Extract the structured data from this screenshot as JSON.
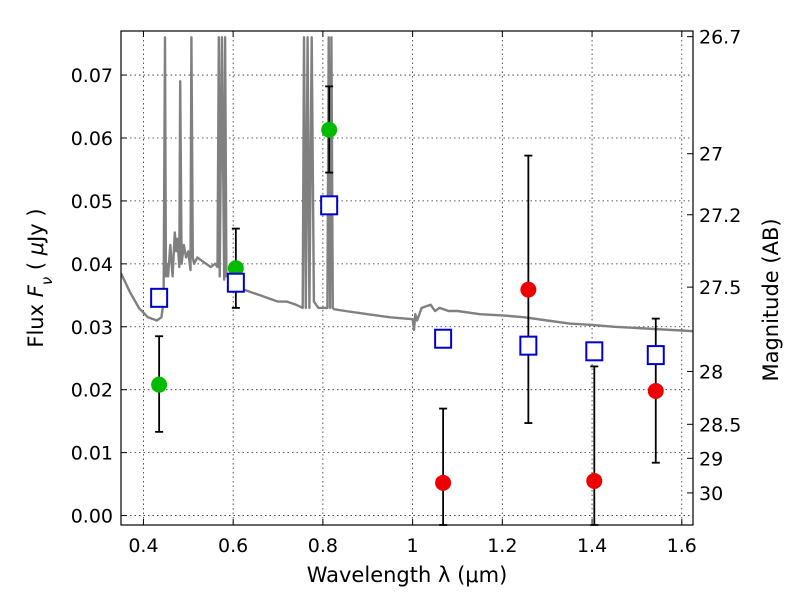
{
  "chart_data": {
    "type": "scatter",
    "xlabel": "Wavelength  λ (μm)",
    "ylabel": "Flux  F_ν  ( μJy )",
    "ylabel_right": "Magnitude (AB)",
    "xlim": [
      0.35,
      1.625
    ],
    "ylim": [
      -0.0015,
      0.077
    ],
    "grid": true,
    "x_ticks": [
      0.4,
      0.6,
      0.8,
      1.0,
      1.2,
      1.4,
      1.6
    ],
    "x_tick_labels": [
      "0.4",
      "0.6",
      "0.8",
      "1",
      "1.2",
      "1.4",
      "1.6"
    ],
    "y_ticks": [
      0.0,
      0.01,
      0.02,
      0.03,
      0.04,
      0.05,
      0.06,
      0.07
    ],
    "y_tick_labels": [
      "0.00",
      "0.01",
      "0.02",
      "0.03",
      "0.04",
      "0.05",
      "0.06",
      "0.07"
    ],
    "right_ticks": [
      {
        "label": "26.7",
        "flux": 0.0761
      },
      {
        "label": "27",
        "flux": 0.0575
      },
      {
        "label": "27.2",
        "flux": 0.0478
      },
      {
        "label": "27.5",
        "flux": 0.0363
      },
      {
        "label": "28",
        "flux": 0.0229
      },
      {
        "label": "28.5",
        "flux": 0.0145
      },
      {
        "label": "29",
        "flux": 0.0091
      },
      {
        "label": "30",
        "flux": 0.0036
      }
    ],
    "series": [
      {
        "marker": "circle",
        "color": "#00bb00",
        "points": [
          {
            "x": 0.435,
            "y": 0.0208,
            "lo": 0.0133,
            "hi": 0.0285
          },
          {
            "x": 0.606,
            "y": 0.0393,
            "lo": 0.033,
            "hi": 0.0456
          },
          {
            "x": 0.814,
            "y": 0.0613,
            "lo": 0.0545,
            "hi": 0.0682
          }
        ]
      },
      {
        "marker": "circle",
        "color": "#ee0000",
        "points": [
          {
            "x": 1.068,
            "y": 0.0052,
            "lo": -0.0015,
            "hi": 0.017
          },
          {
            "x": 1.258,
            "y": 0.0359,
            "lo": 0.0147,
            "hi": 0.0572
          },
          {
            "x": 1.405,
            "y": 0.0055,
            "lo": -0.0015,
            "hi": 0.0237
          },
          {
            "x": 1.542,
            "y": 0.0198,
            "lo": 0.0084,
            "hi": 0.0313
          }
        ]
      },
      {
        "marker": "square",
        "color": "#0000cc",
        "points": [
          {
            "x": 0.435,
            "y": 0.0346
          },
          {
            "x": 0.606,
            "y": 0.037
          },
          {
            "x": 0.814,
            "y": 0.0493
          },
          {
            "x": 1.068,
            "y": 0.0281
          },
          {
            "x": 1.258,
            "y": 0.027
          },
          {
            "x": 1.405,
            "y": 0.0261
          },
          {
            "x": 1.542,
            "y": 0.0255
          }
        ]
      }
    ],
    "model_spectrum": {
      "color": "#808080",
      "x": [
        0.35,
        0.37,
        0.39,
        0.41,
        0.43,
        0.44,
        0.445,
        0.448,
        0.45,
        0.452,
        0.455,
        0.46,
        0.465,
        0.47,
        0.473,
        0.476,
        0.48,
        0.482,
        0.485,
        0.49,
        0.495,
        0.5,
        0.505,
        0.507,
        0.51,
        0.513,
        0.52,
        0.53,
        0.54,
        0.55,
        0.56,
        0.565,
        0.568,
        0.57,
        0.575,
        0.58,
        0.582,
        0.585,
        0.59,
        0.595,
        0.6,
        0.62,
        0.64,
        0.66,
        0.68,
        0.7,
        0.72,
        0.74,
        0.755,
        0.758,
        0.762,
        0.766,
        0.77,
        0.775,
        0.78,
        0.79,
        0.8,
        0.81,
        0.813,
        0.816,
        0.819,
        0.822,
        0.825,
        0.85,
        0.9,
        0.95,
        1.0,
        1.003,
        1.006,
        1.01,
        1.02,
        1.04,
        1.05,
        1.06,
        1.08,
        1.1,
        1.15,
        1.2,
        1.25,
        1.3,
        1.35,
        1.4,
        1.45,
        1.5,
        1.55,
        1.6,
        1.625
      ],
      "y": [
        0.0385,
        0.0355,
        0.033,
        0.0315,
        0.031,
        0.0315,
        0.034,
        0.076,
        0.038,
        0.04,
        0.038,
        0.043,
        0.038,
        0.045,
        0.042,
        0.044,
        0.0395,
        0.069,
        0.04,
        0.043,
        0.041,
        0.042,
        0.039,
        0.076,
        0.041,
        0.04,
        0.041,
        0.0405,
        0.04,
        0.0395,
        0.04,
        0.0395,
        0.076,
        0.038,
        0.076,
        0.0375,
        0.076,
        0.038,
        0.038,
        0.0375,
        0.0375,
        0.036,
        0.0355,
        0.035,
        0.0345,
        0.034,
        0.034,
        0.0335,
        0.033,
        0.076,
        0.033,
        0.076,
        0.033,
        0.076,
        0.034,
        0.033,
        0.033,
        0.033,
        0.076,
        0.033,
        0.076,
        0.033,
        0.0328,
        0.0325,
        0.032,
        0.0315,
        0.0312,
        0.0295,
        0.032,
        0.031,
        0.033,
        0.0335,
        0.0325,
        0.033,
        0.0325,
        0.0325,
        0.032,
        0.0318,
        0.0315,
        0.031,
        0.0305,
        0.0303,
        0.03,
        0.0298,
        0.0296,
        0.0294,
        0.0293
      ]
    }
  }
}
